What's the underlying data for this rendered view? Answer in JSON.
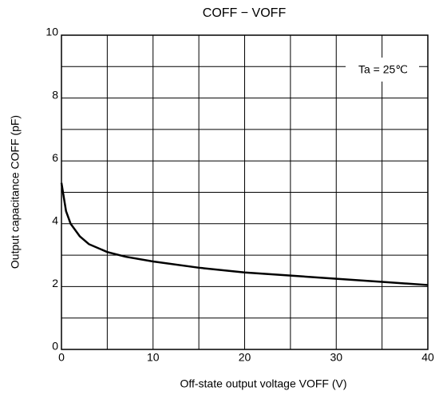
{
  "chart_data": {
    "type": "line",
    "title": "COFF − VOFF",
    "x_label": "Off-state output voltage VOFF   (V)",
    "y_label": "Output capacitance   COFF (pF)",
    "annotation": "Ta = 25℃",
    "x": [
      0,
      0.5,
      1,
      2,
      3,
      5,
      7,
      10,
      15,
      20,
      25,
      30,
      35,
      40
    ],
    "values": [
      5.3,
      4.4,
      4.0,
      3.6,
      3.35,
      3.1,
      2.95,
      2.8,
      2.6,
      2.45,
      2.35,
      2.25,
      2.15,
      2.05
    ],
    "color": "#000000",
    "xlim": [
      0,
      40
    ],
    "xticks": [
      0,
      10,
      20,
      30,
      40
    ],
    "xminor": [
      5,
      15,
      25,
      35
    ],
    "ylim": [
      0,
      10
    ],
    "yticks": [
      0,
      2,
      4,
      6,
      8,
      10
    ],
    "yminor": [
      1,
      3,
      5,
      7,
      9
    ],
    "grid": true
  }
}
